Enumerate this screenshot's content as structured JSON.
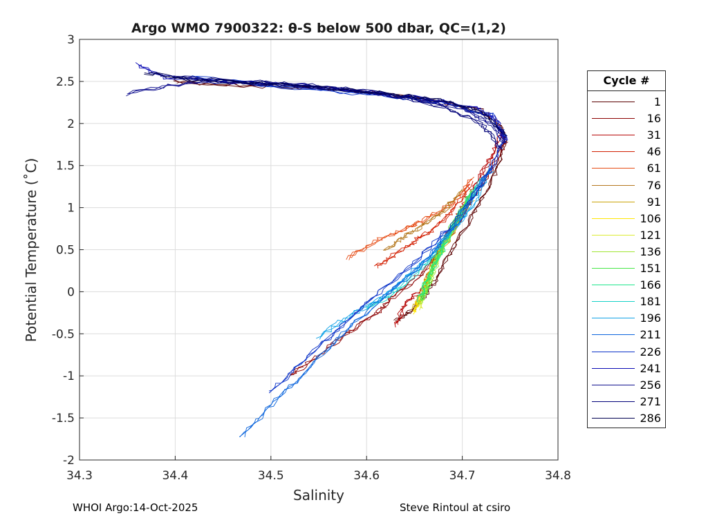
{
  "chart_data": {
    "type": "line",
    "title": "Argo WMO 7900322: θ-S below 500 dbar,  QC=(1,2)",
    "xlabel": "Salinity",
    "ylabel": "Potential Temperature (˚C)",
    "xlim": [
      34.3,
      34.8
    ],
    "ylim": [
      -2,
      3
    ],
    "x_ticks": [
      "34.3",
      "34.4",
      "34.5",
      "34.6",
      "34.7",
      "34.8"
    ],
    "y_ticks": [
      "-2",
      "-1.5",
      "-1",
      "-0.5",
      "0",
      "0.5",
      "1",
      "1.5",
      "2",
      "2.5",
      "3"
    ],
    "grid": true,
    "legend_title": "Cycle #",
    "legend_position": "outside-right",
    "series": [
      {
        "name": "1",
        "color": "#5a0000",
        "s": [
          34.63,
          34.65,
          34.67,
          34.69,
          34.71,
          34.73,
          34.745,
          34.74,
          34.72,
          34.68,
          34.62,
          34.55,
          34.47,
          34.4
        ],
        "t": [
          -0.35,
          -0.2,
          0.1,
          0.5,
          0.9,
          1.3,
          1.75,
          2.0,
          2.15,
          2.25,
          2.35,
          2.42,
          2.45,
          2.5
        ]
      },
      {
        "name": "16",
        "color": "#8c0000",
        "s": [
          34.52,
          34.55,
          34.58,
          34.61,
          34.63,
          34.66,
          34.69,
          34.71,
          34.73,
          34.745
        ],
        "t": [
          -1.0,
          -0.75,
          -0.5,
          -0.25,
          -0.05,
          0.25,
          0.7,
          1.1,
          1.45,
          1.8
        ]
      },
      {
        "name": "31",
        "color": "#b40000",
        "s": [
          34.63,
          34.64,
          34.66,
          34.67,
          34.685,
          34.7,
          34.715,
          34.73,
          34.74
        ],
        "t": [
          -0.4,
          -0.15,
          0.05,
          0.35,
          0.7,
          1.0,
          1.3,
          1.6,
          1.85
        ]
      },
      {
        "name": "46",
        "color": "#d21e00",
        "s": [
          34.61,
          34.63,
          34.65,
          34.67,
          34.69,
          34.71
        ],
        "t": [
          0.3,
          0.45,
          0.6,
          0.75,
          0.95,
          1.3
        ]
      },
      {
        "name": "61",
        "color": "#e64b14",
        "s": [
          34.58,
          34.61,
          34.64,
          34.66,
          34.69,
          34.71
        ],
        "t": [
          0.4,
          0.6,
          0.75,
          0.85,
          1.05,
          1.35
        ]
      },
      {
        "name": "76",
        "color": "#b4781e",
        "s": [
          34.62,
          34.64,
          34.66,
          34.68,
          34.7
        ],
        "t": [
          0.5,
          0.65,
          0.8,
          0.95,
          1.2
        ]
      },
      {
        "name": "91",
        "color": "#c8a000",
        "s": [
          34.65,
          34.66,
          34.67,
          34.69,
          34.71
        ],
        "t": [
          -0.2,
          0.05,
          0.35,
          0.7,
          1.1
        ]
      },
      {
        "name": "106",
        "color": "#ffe600",
        "s": [
          34.65,
          34.655,
          34.665,
          34.68,
          34.7
        ],
        "t": [
          -0.25,
          -0.1,
          0.2,
          0.55,
          0.95
        ]
      },
      {
        "name": "121",
        "color": "#dceb32",
        "s": [
          34.655,
          34.66,
          34.67,
          34.685,
          34.705
        ],
        "t": [
          -0.2,
          0.0,
          0.3,
          0.65,
          1.05
        ]
      },
      {
        "name": "136",
        "color": "#a0e632",
        "s": [
          34.655,
          34.665,
          34.675,
          34.69,
          34.71
        ],
        "t": [
          -0.15,
          0.1,
          0.4,
          0.75,
          1.15
        ]
      },
      {
        "name": "151",
        "color": "#46e646",
        "s": [
          34.66,
          34.665,
          34.675,
          34.69,
          34.71
        ],
        "t": [
          -0.1,
          0.15,
          0.45,
          0.8,
          1.2
        ]
      },
      {
        "name": "166",
        "color": "#1ee68c",
        "s": [
          34.655,
          34.665,
          34.68,
          34.695,
          34.715
        ],
        "t": [
          -0.1,
          0.2,
          0.5,
          0.85,
          1.25
        ]
      },
      {
        "name": "181",
        "color": "#14d2c8",
        "s": [
          34.6,
          34.63,
          34.66,
          34.68,
          34.7,
          34.72
        ],
        "t": [
          -0.2,
          0.0,
          0.3,
          0.6,
          0.95,
          1.35
        ]
      },
      {
        "name": "196",
        "color": "#0aa0e6",
        "s": [
          34.55,
          34.58,
          34.62,
          34.65,
          34.68,
          34.71,
          34.73
        ],
        "t": [
          -0.55,
          -0.3,
          -0.05,
          0.25,
          0.6,
          1.0,
          1.45
        ]
      },
      {
        "name": "211",
        "color": "#0a64dc",
        "s": [
          34.47,
          34.5,
          34.54,
          34.58,
          34.62,
          34.66,
          34.7,
          34.73
        ],
        "t": [
          -1.72,
          -1.35,
          -0.9,
          -0.45,
          -0.05,
          0.35,
          0.9,
          1.5
        ]
      },
      {
        "name": "226",
        "color": "#0a32c8",
        "s": [
          34.5,
          34.53,
          34.57,
          34.61,
          34.65,
          34.69,
          34.725,
          34.745,
          34.73,
          34.68,
          34.6,
          34.5,
          34.42
        ],
        "t": [
          -1.2,
          -0.85,
          -0.45,
          -0.05,
          0.35,
          0.8,
          1.35,
          1.85,
          2.1,
          2.25,
          2.35,
          2.45,
          2.55
        ]
      },
      {
        "name": "241",
        "color": "#0a0ab4",
        "s": [
          34.745,
          34.735,
          34.71,
          34.66,
          34.6,
          34.53,
          34.46,
          34.39,
          34.36
        ],
        "t": [
          1.8,
          2.05,
          2.2,
          2.3,
          2.38,
          2.45,
          2.5,
          2.55,
          2.7
        ]
      },
      {
        "name": "256",
        "color": "#0a0a8c",
        "s": [
          34.745,
          34.73,
          34.7,
          34.65,
          34.58,
          34.5,
          34.42,
          34.35
        ],
        "t": [
          1.75,
          2.0,
          2.18,
          2.3,
          2.4,
          2.47,
          2.5,
          2.35
        ]
      },
      {
        "name": "271",
        "color": "#000078",
        "s": [
          34.74,
          34.72,
          34.68,
          34.62,
          34.55,
          34.48,
          34.4
        ],
        "t": [
          1.7,
          2.0,
          2.2,
          2.35,
          2.45,
          2.5,
          2.55
        ]
      },
      {
        "name": "286",
        "color": "#000050",
        "s": [
          34.745,
          34.725,
          34.69,
          34.63,
          34.56,
          34.49,
          34.42,
          34.37
        ],
        "t": [
          1.85,
          2.1,
          2.25,
          2.35,
          2.42,
          2.48,
          2.52,
          2.6
        ]
      }
    ]
  },
  "footer": {
    "left": "WHOI Argo:14-Oct-2025",
    "right": "Steve Rintoul at csiro"
  }
}
